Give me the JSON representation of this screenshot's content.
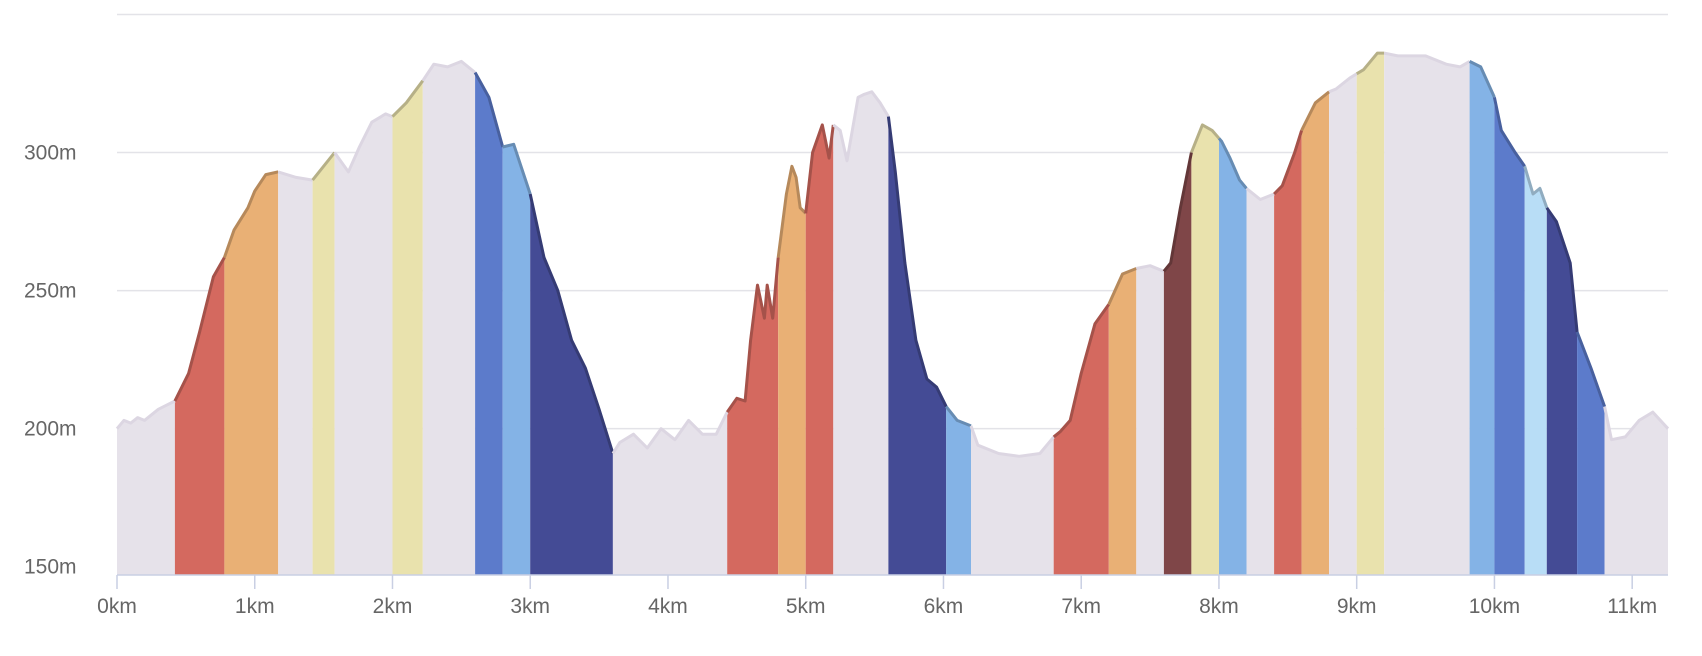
{
  "chart_data": {
    "type": "area",
    "title": "",
    "xlabel": "",
    "ylabel": "",
    "x_unit": "km",
    "y_unit": "m",
    "xlim": [
      0,
      11.26
    ],
    "ylim": [
      147,
      348
    ],
    "x_ticks": [
      0,
      1,
      2,
      3,
      4,
      5,
      6,
      7,
      8,
      9,
      10,
      11
    ],
    "x_tick_labels": [
      "0km",
      "1km",
      "2km",
      "3km",
      "4km",
      "5km",
      "6km",
      "7km",
      "8km",
      "9km",
      "10km",
      "11km"
    ],
    "y_ticks": [
      150,
      200,
      250,
      300
    ],
    "y_tick_labels": [
      "150m",
      "200m",
      "250m",
      "300m"
    ],
    "grid": true,
    "legend": "none",
    "grade_colors": {
      "flat": "#e6e2ea",
      "up_gentle": "#e9e2ad",
      "up_moderate": "#e9b075",
      "up_steep": "#d4695f",
      "up_very_steep": "#7f4648",
      "down_gentle": "#b8ddf6",
      "down_moderate": "#84b3e6",
      "down_steep": "#5c7bcb",
      "down_very_steep": "#444b95"
    },
    "elevation_profile": {
      "x": [
        0,
        0.05,
        0.1,
        0.15,
        0.2,
        0.3,
        0.42,
        0.52,
        0.6,
        0.7,
        0.78,
        0.85,
        0.95,
        1.0,
        1.08,
        1.17,
        1.3,
        1.42,
        1.58,
        1.68,
        1.76,
        1.85,
        1.95,
        2.0,
        2.1,
        2.22,
        2.3,
        2.4,
        2.5,
        2.6,
        2.7,
        2.8,
        2.88,
        3.0,
        3.1,
        3.2,
        3.3,
        3.4,
        3.5,
        3.6,
        3.65,
        3.75,
        3.85,
        3.95,
        4.05,
        4.15,
        4.25,
        4.35,
        4.43,
        4.5,
        4.56,
        4.6,
        4.65,
        4.7,
        4.72,
        4.76,
        4.8,
        4.86,
        4.9,
        4.93,
        4.96,
        5.0,
        5.05,
        5.12,
        5.17,
        5.2,
        5.25,
        5.3,
        5.38,
        5.42,
        5.48,
        5.54,
        5.6,
        5.65,
        5.72,
        5.8,
        5.88,
        5.95,
        6.02,
        6.1,
        6.2,
        6.25,
        6.4,
        6.55,
        6.7,
        6.8,
        6.85,
        6.92,
        7.0,
        7.1,
        7.2,
        7.3,
        7.4,
        7.5,
        7.6,
        7.65,
        7.72,
        7.8,
        7.88,
        7.95,
        8.02,
        8.08,
        8.15,
        8.2,
        8.3,
        8.4,
        8.46,
        8.55,
        8.6,
        8.7,
        8.8,
        8.85,
        8.95,
        9.05,
        9.15,
        9.2,
        9.3,
        9.5,
        9.65,
        9.75,
        9.82,
        9.9,
        10.0,
        10.05,
        10.15,
        10.22,
        10.28,
        10.33,
        10.38,
        10.45,
        10.55,
        10.6,
        10.7,
        10.8,
        10.85,
        10.95,
        11.05,
        11.15,
        11.26
      ],
      "y": [
        200,
        203,
        202,
        204,
        203,
        207,
        210,
        220,
        235,
        255,
        262,
        272,
        280,
        286,
        292,
        293,
        291,
        290,
        300,
        293,
        302,
        311,
        314,
        313,
        318,
        326,
        332,
        331,
        333,
        329,
        320,
        302,
        303,
        285,
        262,
        250,
        232,
        222,
        207,
        191,
        195,
        198,
        193,
        200,
        196,
        203,
        198,
        198,
        206,
        211,
        210,
        232,
        252,
        240,
        252,
        240,
        262,
        285,
        295,
        291,
        280,
        278,
        300,
        310,
        298,
        310,
        308,
        297,
        320,
        321,
        322,
        318,
        313,
        293,
        260,
        232,
        218,
        215,
        208,
        203,
        201,
        194,
        191,
        190,
        191,
        197,
        199,
        203,
        220,
        238,
        245,
        256,
        258,
        259,
        257,
        260,
        280,
        300,
        310,
        308,
        304,
        298,
        290,
        287,
        283,
        285,
        288,
        300,
        308,
        318,
        322,
        323,
        327,
        330,
        336,
        336,
        335,
        335,
        332,
        331,
        333,
        331,
        320,
        308,
        300,
        295,
        285,
        287,
        280,
        275,
        260,
        235,
        222,
        208,
        196,
        197,
        203,
        206,
        200
      ]
    },
    "grade_segments": [
      {
        "start": 0,
        "end": 0.42,
        "grade": "flat"
      },
      {
        "start": 0.42,
        "end": 0.78,
        "grade": "up_steep"
      },
      {
        "start": 0.78,
        "end": 1.17,
        "grade": "up_moderate"
      },
      {
        "start": 1.17,
        "end": 1.42,
        "grade": "flat"
      },
      {
        "start": 1.42,
        "end": 1.58,
        "grade": "up_gentle"
      },
      {
        "start": 1.58,
        "end": 2.0,
        "grade": "flat"
      },
      {
        "start": 2.0,
        "end": 2.22,
        "grade": "up_gentle"
      },
      {
        "start": 2.22,
        "end": 2.6,
        "grade": "flat"
      },
      {
        "start": 2.6,
        "end": 2.8,
        "grade": "down_steep"
      },
      {
        "start": 2.8,
        "end": 3.0,
        "grade": "down_moderate"
      },
      {
        "start": 3.0,
        "end": 3.6,
        "grade": "down_very_steep"
      },
      {
        "start": 3.6,
        "end": 4.43,
        "grade": "flat"
      },
      {
        "start": 4.43,
        "end": 4.8,
        "grade": "up_steep"
      },
      {
        "start": 4.8,
        "end": 5.0,
        "grade": "up_moderate"
      },
      {
        "start": 5.0,
        "end": 5.2,
        "grade": "up_steep"
      },
      {
        "start": 5.2,
        "end": 5.6,
        "grade": "flat"
      },
      {
        "start": 5.6,
        "end": 6.02,
        "grade": "down_very_steep"
      },
      {
        "start": 6.02,
        "end": 6.2,
        "grade": "down_moderate"
      },
      {
        "start": 6.2,
        "end": 6.8,
        "grade": "flat"
      },
      {
        "start": 6.8,
        "end": 7.2,
        "grade": "up_steep"
      },
      {
        "start": 7.2,
        "end": 7.4,
        "grade": "up_moderate"
      },
      {
        "start": 7.4,
        "end": 7.6,
        "grade": "flat"
      },
      {
        "start": 7.6,
        "end": 7.8,
        "grade": "up_very_steep"
      },
      {
        "start": 7.8,
        "end": 8.0,
        "grade": "up_gentle"
      },
      {
        "start": 8.0,
        "end": 8.2,
        "grade": "down_moderate"
      },
      {
        "start": 8.2,
        "end": 8.4,
        "grade": "flat"
      },
      {
        "start": 8.4,
        "end": 8.6,
        "grade": "up_steep"
      },
      {
        "start": 8.6,
        "end": 8.8,
        "grade": "up_moderate"
      },
      {
        "start": 8.8,
        "end": 9.0,
        "grade": "flat"
      },
      {
        "start": 9.0,
        "end": 9.2,
        "grade": "up_gentle"
      },
      {
        "start": 9.2,
        "end": 9.82,
        "grade": "flat"
      },
      {
        "start": 9.82,
        "end": 10.0,
        "grade": "down_moderate"
      },
      {
        "start": 10.0,
        "end": 10.22,
        "grade": "down_steep"
      },
      {
        "start": 10.22,
        "end": 10.38,
        "grade": "down_gentle"
      },
      {
        "start": 10.38,
        "end": 10.6,
        "grade": "down_very_steep"
      },
      {
        "start": 10.6,
        "end": 10.8,
        "grade": "down_steep"
      },
      {
        "start": 10.8,
        "end": 11.26,
        "grade": "flat"
      }
    ]
  }
}
